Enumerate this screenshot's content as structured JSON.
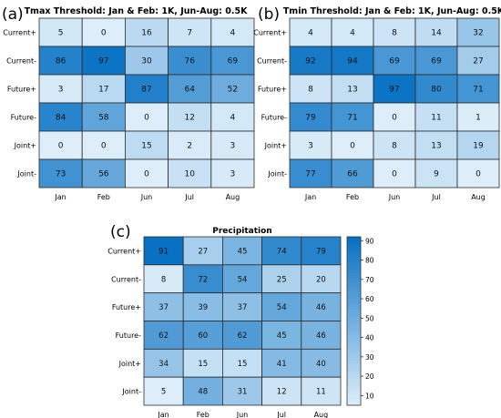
{
  "panels": [
    {
      "id": "a",
      "label": "(a)",
      "title": "Tmax Threshold: Jan & Feb: 1K, Jun-Aug: 0.5K"
    },
    {
      "id": "b",
      "label": "(b)",
      "title": "Tmin Threshold: Jan & Feb: 1K, Jun-Aug: 0.5K"
    },
    {
      "id": "c",
      "label": "(c)",
      "title": "Precipitation"
    }
  ],
  "chart_data": [
    {
      "type": "heatmap",
      "title": "Tmax Threshold: Jan & Feb: 1K, Jun-Aug: 0.5K",
      "x": [
        "Jan",
        "Feb",
        "Jun",
        "Jul",
        "Aug"
      ],
      "y": [
        "Current+",
        "Current-",
        "Future+",
        "Future-",
        "Joint+",
        "Joint-"
      ],
      "values": [
        [
          5,
          0,
          16,
          7,
          4
        ],
        [
          86,
          97,
          30,
          76,
          69
        ],
        [
          3,
          17,
          87,
          64,
          52
        ],
        [
          84,
          58,
          0,
          12,
          4
        ],
        [
          0,
          0,
          15,
          2,
          3
        ],
        [
          73,
          56,
          0,
          10,
          3
        ]
      ],
      "color_range": [
        0,
        100
      ]
    },
    {
      "type": "heatmap",
      "title": "Tmin Threshold: Jan & Feb: 1K, Jun-Aug: 0.5K",
      "x": [
        "Jan",
        "Feb",
        "Jun",
        "Jul",
        "Aug"
      ],
      "y": [
        "Current+",
        "Current-",
        "Future+",
        "Future-",
        "Joint+",
        "Joint-"
      ],
      "values": [
        [
          4,
          4,
          8,
          14,
          32
        ],
        [
          92,
          94,
          69,
          69,
          27
        ],
        [
          8,
          13,
          97,
          80,
          71
        ],
        [
          79,
          71,
          0,
          11,
          1
        ],
        [
          3,
          0,
          8,
          13,
          19
        ],
        [
          77,
          66,
          0,
          9,
          0
        ]
      ],
      "color_range": [
        0,
        100
      ]
    },
    {
      "type": "heatmap",
      "title": "Precipitation",
      "x": [
        "Jan",
        "Feb",
        "Jun",
        "Jul",
        "Aug"
      ],
      "y": [
        "Current+",
        "Current-",
        "Future+",
        "Future-",
        "Joint+",
        "Joint-"
      ],
      "values": [
        [
          91,
          27,
          45,
          74,
          79
        ],
        [
          8,
          72,
          54,
          25,
          20
        ],
        [
          37,
          39,
          37,
          54,
          46
        ],
        [
          62,
          60,
          62,
          45,
          46
        ],
        [
          34,
          15,
          15,
          41,
          40
        ],
        [
          5,
          48,
          31,
          12,
          11
        ]
      ],
      "colorbar_ticks": [
        10,
        20,
        30,
        40,
        50,
        60,
        70,
        80,
        90
      ],
      "color_range": [
        5,
        92
      ]
    }
  ],
  "colors": {
    "low": "#ddeefa",
    "high": "#0670c3",
    "grid": "#2b2b2b"
  }
}
